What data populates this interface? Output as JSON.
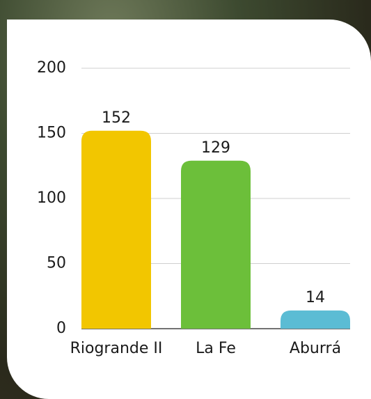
{
  "chart_data": {
    "type": "bar",
    "categories": [
      "Riogrande II",
      "La Fe",
      "Aburrá"
    ],
    "values": [
      152,
      129,
      14
    ],
    "colors": [
      "#f2c600",
      "#6cbf3a",
      "#5bbcd4"
    ],
    "ylim": [
      0,
      200
    ],
    "yticks": [
      0,
      50,
      100,
      150,
      200
    ],
    "grid": true
  }
}
